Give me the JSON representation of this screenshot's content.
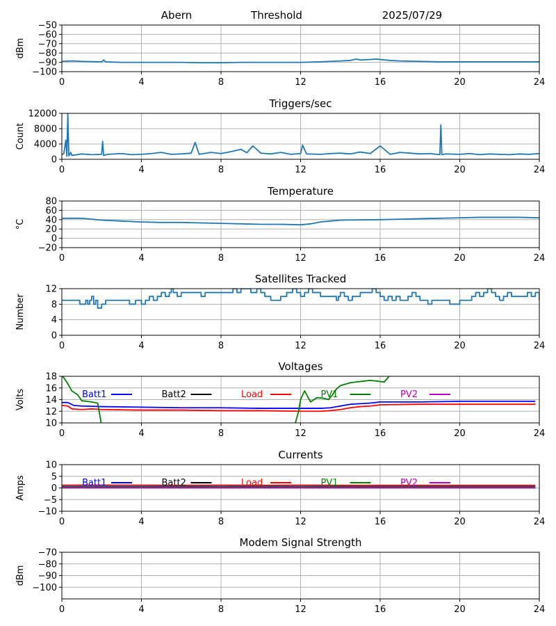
{
  "header": {
    "station": "Abern",
    "mode": "Threshold",
    "date": "2025/07/29"
  },
  "chart_data": [
    {
      "type": "line",
      "title": "",
      "ylabel": "dBm",
      "xlim": [
        0,
        24
      ],
      "ylim": [
        -100,
        -50
      ],
      "xticks": [
        0,
        4,
        8,
        12,
        16,
        20,
        24
      ],
      "yticks": [
        -100,
        -90,
        -80,
        -70,
        -60,
        -50
      ],
      "grid": true,
      "series": [
        {
          "color": "#1f77b4",
          "x": [
            0,
            0.5,
            1,
            2,
            2.1,
            2.2,
            3,
            4,
            5,
            6,
            7,
            8,
            9,
            10,
            11,
            12,
            13,
            13.5,
            14,
            14.5,
            14.8,
            15,
            15.5,
            15.8,
            16,
            16.5,
            17,
            18,
            19,
            20,
            21,
            22,
            23,
            24
          ],
          "y": [
            -89,
            -88.5,
            -89,
            -89.5,
            -87.5,
            -89.5,
            -90,
            -90,
            -90,
            -90,
            -90.5,
            -90.5,
            -90,
            -90,
            -90,
            -90,
            -89.5,
            -89,
            -88.5,
            -88,
            -86.5,
            -87.5,
            -87,
            -86.5,
            -87,
            -88,
            -88.5,
            -89,
            -89.5,
            -89.5,
            -89.5,
            -89.5,
            -89.5,
            -89.5
          ]
        }
      ]
    },
    {
      "type": "line",
      "title": "Triggers/sec",
      "ylabel": "Count",
      "xlim": [
        0,
        24
      ],
      "ylim": [
        0,
        12000
      ],
      "xticks": [
        0,
        4,
        8,
        12,
        16,
        20,
        24
      ],
      "yticks": [
        0,
        4000,
        8000,
        12000
      ],
      "grid": true,
      "series": [
        {
          "color": "#1f77b4",
          "x": [
            0,
            0.1,
            0.2,
            0.25,
            0.3,
            0.35,
            0.4,
            0.45,
            0.5,
            1,
            1.5,
            2,
            2.05,
            2.1,
            2.3,
            3,
            3.5,
            4,
            4.5,
            5,
            5.5,
            6,
            6.5,
            6.7,
            6.9,
            7.5,
            8,
            8.5,
            9,
            9.3,
            9.6,
            10,
            10.5,
            11,
            11.5,
            12,
            12.1,
            12.3,
            13,
            13.5,
            14,
            14.5,
            15,
            15.5,
            16,
            16.5,
            17,
            17.5,
            18,
            18.5,
            19,
            19.05,
            19.1,
            19.3,
            20,
            20.5,
            21,
            21.5,
            22,
            22.5,
            23,
            23.5,
            24
          ],
          "y": [
            1200,
            1500,
            5000,
            800,
            12000,
            900,
            1300,
            1800,
            1000,
            1400,
            1200,
            1300,
            4700,
            1000,
            1300,
            1500,
            1200,
            1300,
            1500,
            1800,
            1300,
            1400,
            1600,
            4400,
            1300,
            1800,
            1500,
            2000,
            2600,
            1700,
            3500,
            1600,
            1400,
            1800,
            1300,
            1500,
            3700,
            1400,
            1300,
            1500,
            1600,
            1400,
            1900,
            1500,
            3500,
            1300,
            1800,
            1600,
            1400,
            1500,
            1200,
            9000,
            1200,
            1400,
            1300,
            1500,
            1200,
            1400,
            1300,
            1200,
            1400,
            1300,
            1500
          ]
        }
      ]
    },
    {
      "type": "line",
      "title": "Temperature",
      "ylabel": "°C",
      "xlim": [
        0,
        24
      ],
      "ylim": [
        -20,
        80
      ],
      "xticks": [
        0,
        4,
        8,
        12,
        16,
        20,
        24
      ],
      "yticks": [
        -20,
        0,
        20,
        40,
        60,
        80
      ],
      "grid": true,
      "series": [
        {
          "color": "#1f77b4",
          "x": [
            0,
            1,
            1.5,
            2,
            3,
            4,
            5,
            6,
            7,
            8,
            9,
            10,
            11,
            11.5,
            12,
            12.5,
            13,
            13.5,
            14,
            15,
            16,
            17,
            18,
            19,
            20,
            21,
            22,
            23,
            24
          ],
          "y": [
            43,
            43,
            41,
            39,
            37,
            35,
            34,
            34,
            33,
            32,
            31,
            30,
            30,
            29.5,
            29,
            31,
            35,
            37,
            39,
            39.5,
            40,
            41,
            42,
            43,
            44,
            45,
            45,
            45,
            44
          ]
        }
      ]
    },
    {
      "type": "line",
      "title": "Satellites Tracked",
      "ylabel": "Number",
      "xlim": [
        0,
        24
      ],
      "ylim": [
        0,
        12
      ],
      "xticks": [
        0,
        4,
        8,
        12,
        16,
        20,
        24
      ],
      "yticks": [
        0,
        4,
        8,
        12
      ],
      "grid": true,
      "step": true,
      "series": [
        {
          "color": "#1f77b4",
          "x": [
            0,
            0.6,
            0.9,
            1.2,
            1.3,
            1.4,
            1.5,
            1.6,
            1.7,
            1.8,
            2.0,
            2.2,
            3.0,
            3.2,
            3.4,
            3.7,
            4.0,
            4.2,
            4.4,
            4.6,
            4.8,
            5.0,
            5.2,
            5.4,
            5.5,
            5.6,
            5.8,
            6.0,
            6.5,
            7.0,
            7.2,
            7.5,
            8.0,
            8.3,
            8.6,
            8.8,
            9.0,
            9.5,
            9.8,
            10.0,
            10.2,
            10.5,
            11.0,
            11.3,
            11.6,
            11.8,
            12.0,
            12.2,
            12.4,
            12.6,
            13.0,
            13.5,
            13.8,
            13.9,
            14.0,
            14.2,
            14.4,
            14.6,
            15.0,
            15.6,
            15.8,
            16.0,
            16.2,
            16.4,
            16.6,
            16.8,
            17.0,
            17.4,
            17.6,
            17.8,
            18.0,
            18.4,
            18.6,
            19.0,
            19.5,
            20.0,
            20.4,
            20.6,
            20.8,
            21.0,
            21.2,
            21.4,
            21.6,
            21.8,
            22.0,
            22.2,
            22.4,
            22.6,
            23.0,
            23.4,
            23.6,
            23.8,
            24.0
          ],
          "y": [
            9,
            9,
            8,
            9,
            8,
            9,
            10,
            8,
            9,
            7,
            8,
            9,
            9,
            9,
            8,
            9,
            8,
            9,
            10,
            9,
            10,
            11,
            10,
            11,
            12,
            11,
            10,
            11,
            11,
            10,
            11,
            11,
            11,
            11,
            12,
            11,
            12,
            11,
            12,
            11,
            10,
            9,
            10,
            11,
            12,
            11,
            10,
            11,
            12,
            11,
            10,
            10,
            9,
            10,
            11,
            10,
            9,
            10,
            11,
            12,
            11,
            10,
            9,
            10,
            9,
            10,
            9,
            10,
            11,
            10,
            9,
            8,
            9,
            9,
            8,
            9,
            9,
            10,
            11,
            10,
            11,
            12,
            11,
            10,
            9,
            10,
            11,
            10,
            10,
            11,
            10,
            11,
            9
          ]
        }
      ]
    },
    {
      "type": "line",
      "title": "Voltages",
      "ylabel": "Volts",
      "xlim": [
        0,
        24
      ],
      "ylim": [
        10,
        18
      ],
      "xticks": [
        0,
        4,
        8,
        12,
        16,
        20,
        24
      ],
      "yticks": [
        10,
        12,
        14,
        16,
        18
      ],
      "grid": true,
      "legend": "top, inside, single row",
      "series": [
        {
          "name": "Batt1",
          "color": "#0000ff",
          "x": [
            0,
            0.3,
            0.6,
            1,
            2,
            4,
            6,
            8,
            10,
            12,
            13,
            13.5,
            14,
            14.5,
            15,
            15.5,
            16,
            18,
            20,
            22,
            23.8
          ],
          "y": [
            13.5,
            13.5,
            13.0,
            12.9,
            12.8,
            12.7,
            12.6,
            12.6,
            12.5,
            12.5,
            12.5,
            12.6,
            12.9,
            13.2,
            13.3,
            13.4,
            13.6,
            13.6,
            13.7,
            13.7,
            13.7
          ]
        },
        {
          "name": "Batt2",
          "color": "#000000",
          "x": [],
          "y": []
        },
        {
          "name": "Load",
          "color": "#ff0000",
          "x": [
            0,
            0.3,
            0.5,
            1,
            1.5,
            2,
            4,
            6,
            8,
            10,
            12,
            13,
            13.5,
            14,
            14.5,
            15,
            15.5,
            16,
            18,
            20,
            22,
            23.8
          ],
          "y": [
            13.0,
            12.9,
            12.4,
            12.3,
            12.4,
            12.3,
            12.2,
            12.2,
            12.1,
            12.1,
            12.0,
            12.0,
            12.1,
            12.3,
            12.6,
            12.8,
            12.9,
            13.1,
            13.2,
            13.2,
            13.2,
            13.2
          ]
        },
        {
          "name": "PV1",
          "color": "#008000",
          "x": [
            0,
            0.25,
            0.5,
            0.8,
            1,
            1.5,
            1.8,
            1.9,
            2.0,
            11.7,
            11.9,
            12.0,
            12.2,
            12.5,
            12.8,
            13.0,
            13.2,
            13.4,
            13.6,
            13.8,
            14.0,
            14.5,
            15.0,
            15.5,
            16.0,
            16.2,
            16.5
          ],
          "y": [
            18.2,
            17.0,
            15.5,
            14.8,
            13.8,
            13.6,
            13.4,
            11.5,
            9.5,
            9.5,
            12.0,
            14.0,
            15.5,
            13.6,
            14.3,
            14.3,
            14.2,
            14.0,
            14.8,
            15.8,
            16.4,
            16.9,
            17.1,
            17.3,
            17.1,
            17.0,
            18.2
          ]
        },
        {
          "name": "PV2",
          "color": "#bf00bf",
          "x": [],
          "y": []
        }
      ]
    },
    {
      "type": "line",
      "title": "Currents",
      "ylabel": "Amps",
      "xlim": [
        0,
        24
      ],
      "ylim": [
        -10,
        10
      ],
      "xticks": [
        0,
        4,
        8,
        12,
        16,
        20,
        24
      ],
      "yticks": [
        -10,
        -5,
        0,
        5,
        10
      ],
      "grid": true,
      "legend": "top, inside, single row",
      "series": [
        {
          "name": "Batt1",
          "color": "#0000ff",
          "x": [
            0,
            6,
            12,
            18,
            23.8
          ],
          "y": [
            0.6,
            0.6,
            0.6,
            0.6,
            0.6
          ]
        },
        {
          "name": "Batt2",
          "color": "#000000",
          "x": [],
          "y": []
        },
        {
          "name": "Load",
          "color": "#ff0000",
          "x": [
            0,
            2,
            4,
            6,
            8,
            10,
            12,
            14,
            16,
            18,
            20,
            22,
            23.8
          ],
          "y": [
            1.2,
            1.2,
            1.2,
            1.1,
            1.2,
            1.1,
            1.2,
            1.1,
            1.1,
            1.1,
            1.1,
            1.1,
            1.1
          ]
        },
        {
          "name": "PV1",
          "color": "#008000",
          "x": [
            0,
            6,
            12,
            18,
            23.8
          ],
          "y": [
            0.4,
            0.4,
            0.4,
            0.4,
            0.4
          ]
        },
        {
          "name": "PV2",
          "color": "#bf00bf",
          "x": [
            0,
            6,
            12,
            18,
            23.8
          ],
          "y": [
            0,
            0,
            0,
            0,
            0
          ]
        }
      ]
    },
    {
      "type": "line",
      "title": "Modem Signal Strength",
      "ylabel": "dBm",
      "xlim": [
        0,
        24
      ],
      "ylim": [
        -110,
        -70
      ],
      "xticks": [
        0,
        4,
        8,
        12,
        16,
        20,
        24
      ],
      "yticks": [
        -100,
        -90,
        -80,
        -70
      ],
      "grid": true,
      "series": []
    }
  ]
}
